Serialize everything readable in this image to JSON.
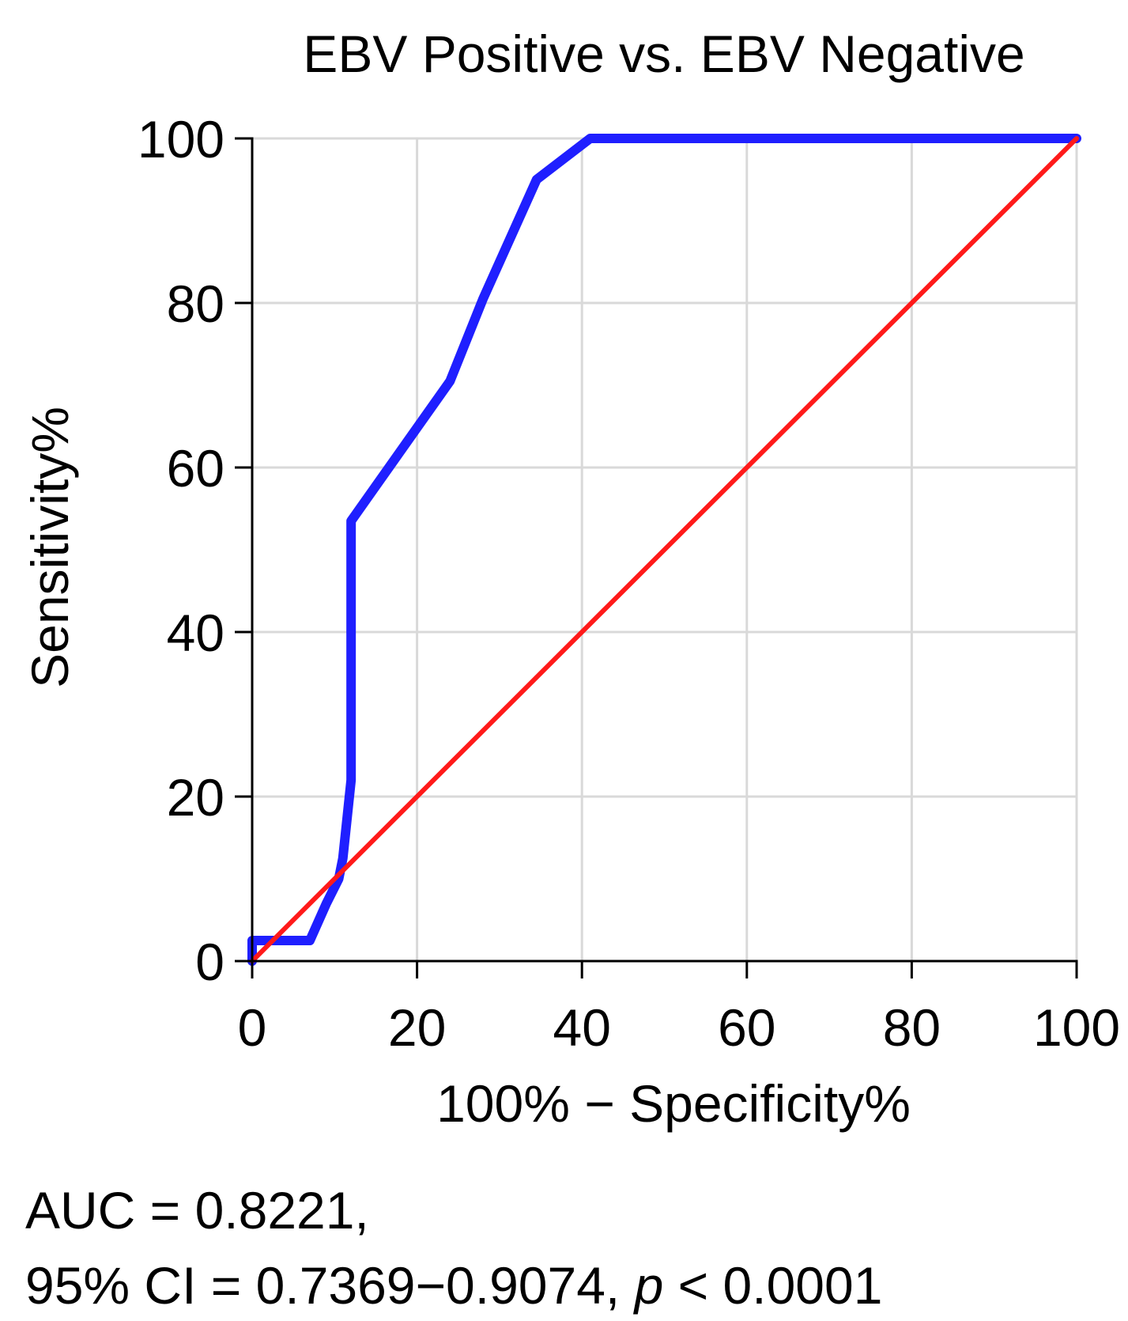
{
  "chart_data": {
    "type": "line",
    "title": "EBV Positive vs. EBV Negative",
    "xlabel": "100% − Specificity%",
    "ylabel": "Sensitivity%",
    "xlim": [
      0,
      100
    ],
    "ylim": [
      0,
      100
    ],
    "x_ticks": [
      0,
      20,
      40,
      60,
      80,
      100
    ],
    "y_ticks": [
      0,
      20,
      40,
      60,
      80,
      100
    ],
    "x_tick_labels": [
      "0",
      "20",
      "40",
      "60",
      "80",
      "100"
    ],
    "y_tick_labels": [
      "0",
      "20",
      "40",
      "60",
      "80",
      "100"
    ],
    "grid": true,
    "series": [
      {
        "color": "#1f1fff",
        "x": [
          0,
          0,
          7,
          9,
          10.5,
          11,
          12,
          12,
          24,
          28,
          34.5,
          41,
          100
        ],
        "y": [
          0,
          2.5,
          2.5,
          7,
          10,
          12.5,
          22,
          53.5,
          70.5,
          80.5,
          95,
          100,
          100
        ]
      },
      {
        "color": "#ff1a1a",
        "x": [
          0,
          100
        ],
        "y": [
          0,
          100
        ]
      }
    ],
    "annotations": {
      "auc_text": "AUC = 0.8221,",
      "ci_text": "95% CI = 0.7369−0.9074, ",
      "p_symbol": "p",
      "p_text": " < 0.0001"
    }
  }
}
